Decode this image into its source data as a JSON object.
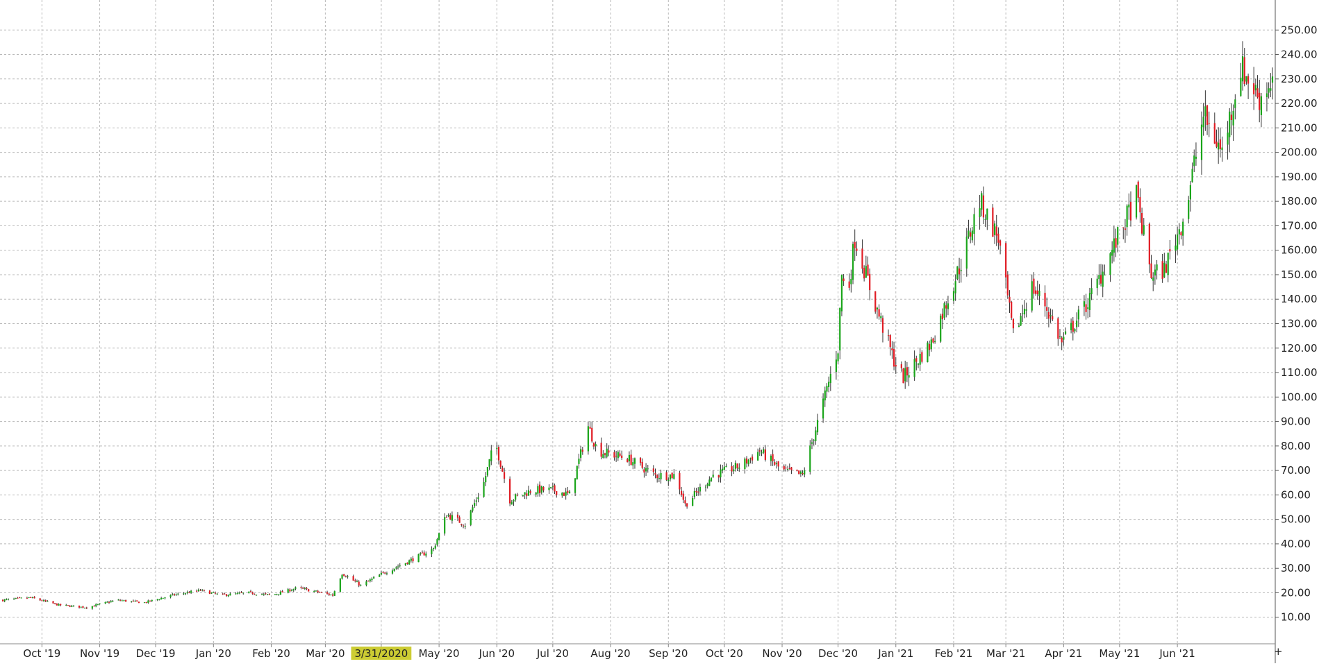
{
  "chart_data": {
    "type": "candlestick",
    "title": "",
    "xlabel": "",
    "ylabel": "",
    "ylim": [
      0,
      260
    ],
    "y_ticks": [
      "10.00",
      "20.00",
      "30.00",
      "40.00",
      "50.00",
      "60.00",
      "70.00",
      "80.00",
      "90.00",
      "100.00",
      "110.00",
      "120.00",
      "130.00",
      "140.00",
      "150.00",
      "160.00",
      "170.00",
      "180.00",
      "190.00",
      "200.00",
      "210.00",
      "220.00",
      "230.00",
      "240.00",
      "250.00"
    ],
    "x_ticks": [
      {
        "label": "Oct '19",
        "date": "2019-10-01"
      },
      {
        "label": "Nov '19",
        "date": "2019-11-01"
      },
      {
        "label": "Dec '19",
        "date": "2019-12-01"
      },
      {
        "label": "Jan '20",
        "date": "2020-01-01"
      },
      {
        "label": "Feb '20",
        "date": "2020-02-01"
      },
      {
        "label": "Mar '20",
        "date": "2020-03-01"
      },
      {
        "label": "3/31/2020",
        "date": "2020-03-31",
        "highlight": true
      },
      {
        "label": "May '20",
        "date": "2020-05-01"
      },
      {
        "label": "Jun '20",
        "date": "2020-06-01"
      },
      {
        "label": "Jul '20",
        "date": "2020-07-01"
      },
      {
        "label": "Aug '20",
        "date": "2020-08-01"
      },
      {
        "label": "Sep '20",
        "date": "2020-09-01"
      },
      {
        "label": "Oct '20",
        "date": "2020-10-01"
      },
      {
        "label": "Nov '20",
        "date": "2020-11-01"
      },
      {
        "label": "Dec '20",
        "date": "2020-12-01"
      },
      {
        "label": "Jan '21",
        "date": "2021-01-01"
      },
      {
        "label": "Feb '21",
        "date": "2021-02-01"
      },
      {
        "label": "Mar '21",
        "date": "2021-03-01"
      },
      {
        "label": "Apr '21",
        "date": "2021-04-01"
      },
      {
        "label": "May '21",
        "date": "2021-05-01"
      },
      {
        "label": "Jun '21",
        "date": "2021-06-01"
      }
    ],
    "x_range": [
      "2019-09-10",
      "2021-07-22"
    ],
    "price_path": [
      {
        "date": "2019-09-10",
        "close": 17
      },
      {
        "date": "2019-09-25",
        "close": 18
      },
      {
        "date": "2019-10-10",
        "close": 15
      },
      {
        "date": "2019-10-25",
        "close": 14
      },
      {
        "date": "2019-11-10",
        "close": 17
      },
      {
        "date": "2019-11-25",
        "close": 16
      },
      {
        "date": "2019-12-10",
        "close": 19
      },
      {
        "date": "2019-12-25",
        "close": 21
      },
      {
        "date": "2020-01-05",
        "close": 19
      },
      {
        "date": "2020-01-20",
        "close": 20
      },
      {
        "date": "2020-02-01",
        "close": 19
      },
      {
        "date": "2020-02-15",
        "close": 22
      },
      {
        "date": "2020-02-28",
        "close": 20
      },
      {
        "date": "2020-03-05",
        "close": 19
      },
      {
        "date": "2020-03-10",
        "close": 28
      },
      {
        "date": "2020-03-20",
        "close": 23
      },
      {
        "date": "2020-04-01",
        "close": 28
      },
      {
        "date": "2020-04-15",
        "close": 33
      },
      {
        "date": "2020-04-28",
        "close": 38
      },
      {
        "date": "2020-05-05",
        "close": 52
      },
      {
        "date": "2020-05-15",
        "close": 48
      },
      {
        "date": "2020-05-25",
        "close": 65
      },
      {
        "date": "2020-05-31",
        "close": 82
      },
      {
        "date": "2020-06-08",
        "close": 58
      },
      {
        "date": "2020-06-20",
        "close": 62
      },
      {
        "date": "2020-07-01",
        "close": 62
      },
      {
        "date": "2020-07-10",
        "close": 60
      },
      {
        "date": "2020-07-20",
        "close": 88
      },
      {
        "date": "2020-07-25",
        "close": 78
      },
      {
        "date": "2020-08-10",
        "close": 75
      },
      {
        "date": "2020-08-25",
        "close": 68
      },
      {
        "date": "2020-09-05",
        "close": 68
      },
      {
        "date": "2020-09-10",
        "close": 56
      },
      {
        "date": "2020-09-25",
        "close": 68
      },
      {
        "date": "2020-10-10",
        "close": 72
      },
      {
        "date": "2020-10-20",
        "close": 78
      },
      {
        "date": "2020-11-01",
        "close": 70
      },
      {
        "date": "2020-11-12",
        "close": 68
      },
      {
        "date": "2020-11-22",
        "close": 95
      },
      {
        "date": "2020-12-01",
        "close": 120
      },
      {
        "date": "2020-12-03",
        "close": 150
      },
      {
        "date": "2020-12-06",
        "close": 140
      },
      {
        "date": "2020-12-10",
        "close": 165
      },
      {
        "date": "2020-12-20",
        "close": 140
      },
      {
        "date": "2020-12-31",
        "close": 115
      },
      {
        "date": "2021-01-05",
        "close": 108
      },
      {
        "date": "2021-01-20",
        "close": 122
      },
      {
        "date": "2021-02-05",
        "close": 155
      },
      {
        "date": "2021-02-15",
        "close": 180
      },
      {
        "date": "2021-02-25",
        "close": 165
      },
      {
        "date": "2021-03-05",
        "close": 125
      },
      {
        "date": "2021-03-15",
        "close": 145
      },
      {
        "date": "2021-03-22",
        "close": 138
      },
      {
        "date": "2021-03-31",
        "close": 122
      },
      {
        "date": "2021-04-05",
        "close": 128
      },
      {
        "date": "2021-04-15",
        "close": 140
      },
      {
        "date": "2021-04-30",
        "close": 165
      },
      {
        "date": "2021-05-10",
        "close": 182
      },
      {
        "date": "2021-05-18",
        "close": 150
      },
      {
        "date": "2021-05-25",
        "close": 152
      },
      {
        "date": "2021-06-05",
        "close": 175
      },
      {
        "date": "2021-06-15",
        "close": 215
      },
      {
        "date": "2021-06-25",
        "close": 200
      },
      {
        "date": "2021-07-05",
        "close": 235
      },
      {
        "date": "2021-07-15",
        "close": 222
      },
      {
        "date": "2021-07-22",
        "close": 230
      }
    ],
    "colors": {
      "up": "#1aa51a",
      "down": "#e01c24",
      "wick": "#333333",
      "grid": "#b8b8b8",
      "highlight": "#cccc33"
    },
    "grid": true,
    "y_axis_position": "right"
  }
}
